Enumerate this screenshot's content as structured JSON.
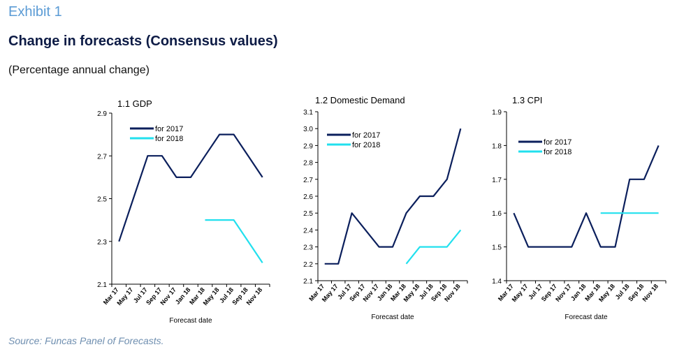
{
  "header": {
    "exhibit": "Exhibit 1",
    "title": "Change in forecasts (Consensus values)",
    "subtitle": "(Percentage annual change)"
  },
  "source": "Source: Funcas Panel of Forecasts.",
  "colors": {
    "for2017": "#0b1f5c",
    "for2018": "#22e0ee",
    "axis": "#000000"
  },
  "chart_data": [
    {
      "type": "line",
      "title": "1.1 GDP",
      "xlabel": "Forecast date",
      "ylabel": "",
      "ylim": [
        2.1,
        2.9
      ],
      "yticks": [
        "2.1",
        "2.3",
        "2.5",
        "2.7",
        "2.9"
      ],
      "categories": [
        "Mar 17",
        "May 17",
        "Jul 17",
        "Sep 17",
        "Nov 17",
        "Jan 18",
        "Mar 18",
        "May 18",
        "Jul 18",
        "Sep 18",
        "Nov 18"
      ],
      "legend_position": "top-left",
      "series": [
        {
          "name": "for 2017",
          "values": [
            2.3,
            2.5,
            2.7,
            2.7,
            2.6,
            2.6,
            2.7,
            2.8,
            2.8,
            2.7,
            2.6
          ]
        },
        {
          "name": "for 2018",
          "values": [
            null,
            null,
            null,
            null,
            null,
            null,
            2.4,
            2.4,
            2.4,
            2.3,
            2.2
          ]
        }
      ]
    },
    {
      "type": "line",
      "title": "1.2 Domestic Demand",
      "xlabel": "Forecast date",
      "ylabel": "",
      "ylim": [
        2.1,
        3.1
      ],
      "yticks": [
        "2.1",
        "2.2",
        "2.3",
        "2.4",
        "2.5",
        "2.6",
        "2.7",
        "2.8",
        "2.9",
        "3.0",
        "3.1"
      ],
      "categories": [
        "Mar 17",
        "May 17",
        "Jul 17",
        "Sep 17",
        "Nov 17",
        "Jan 18",
        "Mar 18",
        "May 18",
        "Jul 18",
        "Sep 18",
        "Nov 18"
      ],
      "legend_position": "top-left",
      "series": [
        {
          "name": "for 2017",
          "values": [
            2.2,
            2.2,
            2.5,
            2.4,
            2.3,
            2.3,
            2.5,
            2.6,
            2.6,
            2.7,
            3.0
          ]
        },
        {
          "name": "for 2018",
          "values": [
            null,
            null,
            null,
            null,
            null,
            null,
            2.2,
            2.3,
            2.3,
            2.3,
            2.4
          ]
        }
      ]
    },
    {
      "type": "line",
      "title": "1.3 CPI",
      "xlabel": "Forecast date",
      "ylabel": "",
      "ylim": [
        1.4,
        1.9
      ],
      "yticks": [
        "1.4",
        "1.5",
        "1.6",
        "1.7",
        "1.8",
        "1.9"
      ],
      "categories": [
        "Mar 17",
        "May 17",
        "Jul 17",
        "Sep 17",
        "Nov 17",
        "Jan 18",
        "Mar 18",
        "May 18",
        "Jul 18",
        "Sep 18",
        "Nov 18"
      ],
      "legend_position": "top-left",
      "series": [
        {
          "name": "for 2017",
          "values": [
            1.6,
            1.5,
            1.5,
            1.5,
            1.5,
            1.6,
            1.5,
            1.5,
            1.7,
            1.7,
            1.8
          ]
        },
        {
          "name": "for 2018",
          "values": [
            null,
            null,
            null,
            null,
            null,
            null,
            1.6,
            1.6,
            1.6,
            1.6,
            1.6
          ]
        }
      ]
    }
  ]
}
